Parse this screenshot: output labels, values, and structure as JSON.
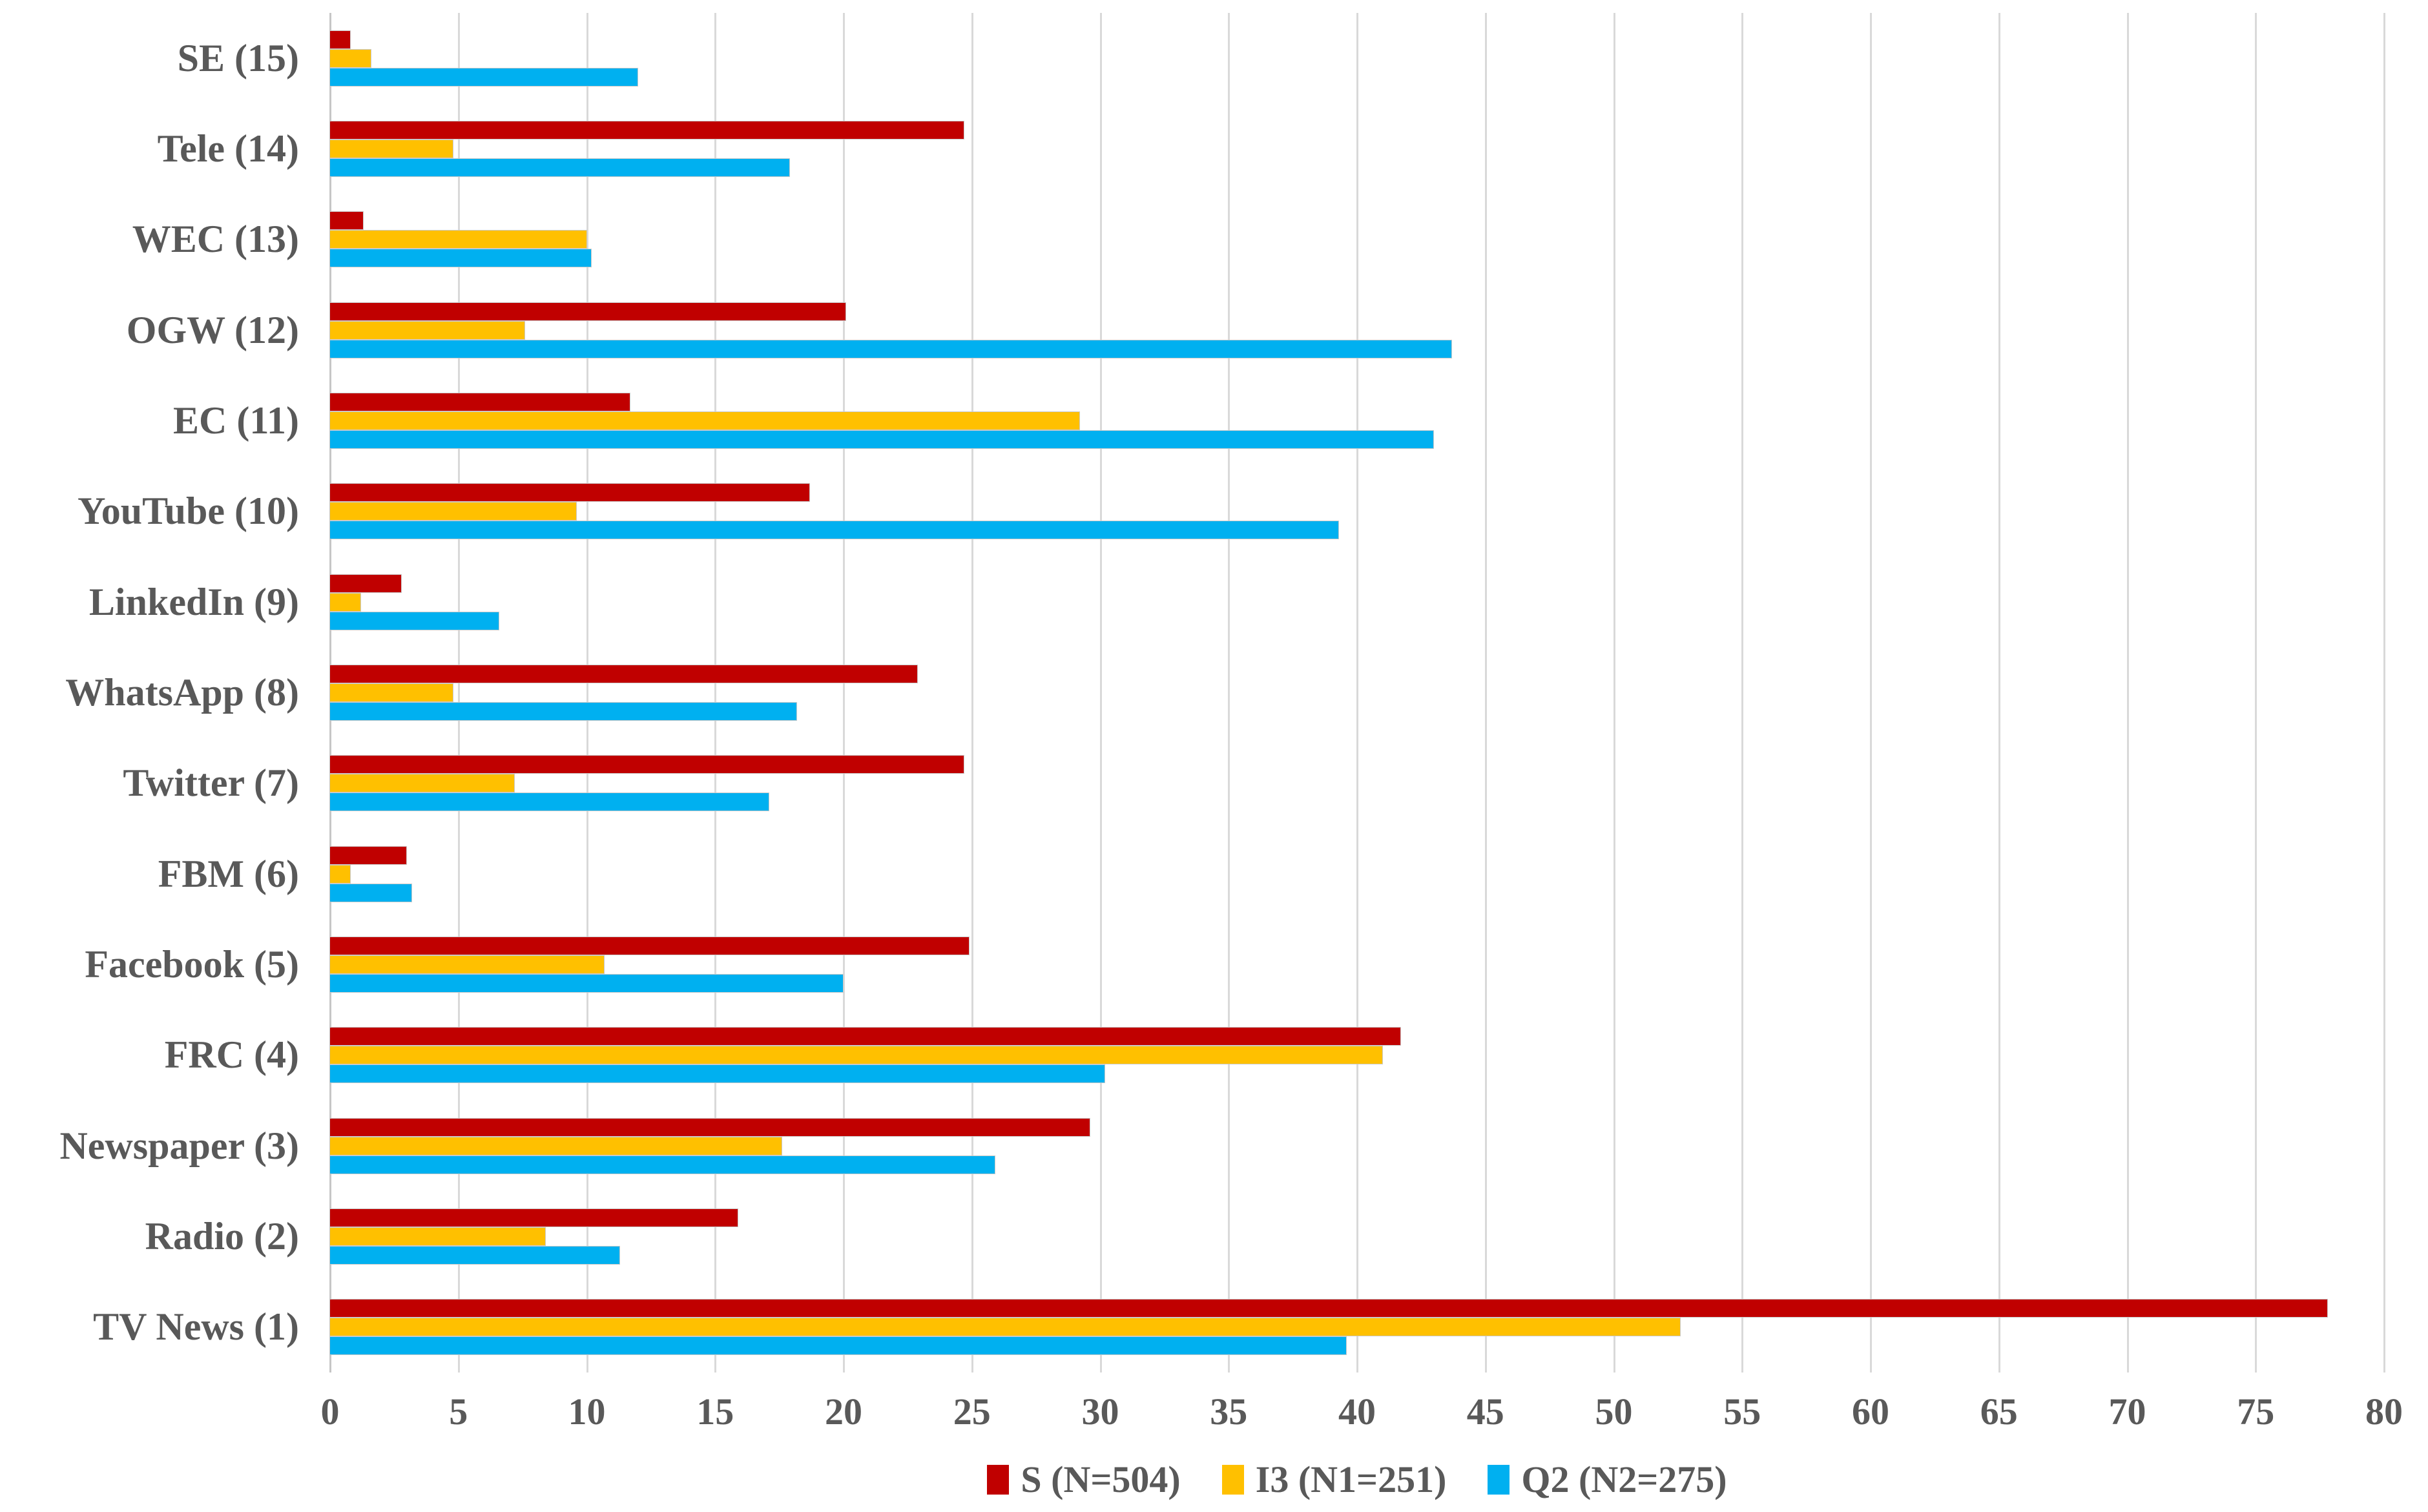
{
  "chart_data": {
    "type": "bar",
    "orientation": "horizontal",
    "title": "",
    "xlabel": "",
    "ylabel": "",
    "categories": [
      "SE (15)",
      "Tele (14)",
      "WEC (13)",
      "OGW (12)",
      "EC (11)",
      "YouTube (10)",
      "LinkedIn (9)",
      "WhatsApp (8)",
      "Twitter (7)",
      "FBM (6)",
      "Facebook (5)",
      "FRC (4)",
      "Newspaper (3)",
      "Radio (2)",
      "TV News (1)"
    ],
    "series": [
      {
        "name": "S (N=504)",
        "color": "#C00000",
        "values": [
          0.8,
          24.7,
          1.3,
          20.1,
          11.7,
          18.7,
          2.8,
          22.9,
          24.7,
          3.0,
          24.9,
          41.7,
          29.6,
          15.9,
          77.8
        ]
      },
      {
        "name": "I3 (N1=251)",
        "color": "#FFC000",
        "values": [
          1.6,
          4.8,
          10.0,
          7.6,
          29.2,
          9.6,
          1.2,
          4.8,
          7.2,
          0.8,
          10.7,
          41.0,
          17.6,
          8.4,
          52.6
        ]
      },
      {
        "name": "Q2 (N2=275)",
        "color": "#00B0F0",
        "values": [
          12.0,
          17.9,
          10.2,
          43.7,
          43.0,
          39.3,
          6.6,
          18.2,
          17.1,
          3.2,
          20.0,
          30.2,
          25.9,
          11.3,
          39.6
        ]
      }
    ],
    "xlim": [
      0,
      80
    ],
    "x_ticks": [
      0,
      5,
      10,
      15,
      20,
      25,
      30,
      35,
      40,
      45,
      50,
      55,
      60,
      65,
      70,
      75,
      80
    ],
    "grid": "vertical-only",
    "legend_position": "bottom-center",
    "axis_text_color": "#595959",
    "gridline_color": "#D9D9D9",
    "background_color": "#FFFFFF"
  }
}
